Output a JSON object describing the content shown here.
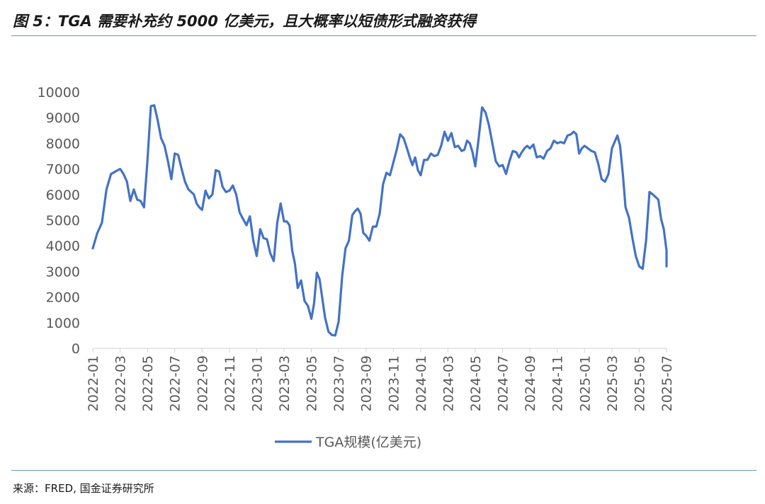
{
  "header": {
    "title": "图 5：TGA 需要补充约 5000 亿美元，且大概率以短债形式融资获得"
  },
  "footer": {
    "source_label": "来源：",
    "source_text": "FRED, 国金证券研究所"
  },
  "colors": {
    "series": "#4472c4",
    "rule": "#6b94b8",
    "axis": "#d9d9d9",
    "tick_text": "#595959"
  },
  "chart_data": {
    "type": "line",
    "title": "",
    "xlabel": "",
    "ylabel": "",
    "ylim": [
      0,
      10000
    ],
    "y_ticks": [
      "0",
      "1000",
      "2000",
      "3000",
      "4000",
      "5000",
      "6000",
      "7000",
      "8000",
      "9000",
      "10000"
    ],
    "x_range": [
      "2022-01",
      "2025-07"
    ],
    "x_ticks": [
      "2022-01",
      "2022-03",
      "2022-05",
      "2022-07",
      "2022-09",
      "2022-11",
      "2023-01",
      "2023-03",
      "2023-05",
      "2023-07",
      "2023-09",
      "2023-11",
      "2024-01",
      "2024-03",
      "2024-05",
      "2024-07",
      "2024-09",
      "2024-11",
      "2025-01",
      "2025-03",
      "2025-05",
      "2025-07"
    ],
    "grid": false,
    "legend_position": "bottom",
    "series": [
      {
        "name": "TGA规模(亿美元)",
        "points": [
          [
            "2022-01",
            3900
          ],
          [
            "2022-01",
            4500
          ],
          [
            "2022-01",
            4900
          ],
          [
            "2022-02",
            6200
          ],
          [
            "2022-02",
            6800
          ],
          [
            "2022-02",
            6900
          ],
          [
            "2022-03",
            7000
          ],
          [
            "2022-03",
            6800
          ],
          [
            "2022-03",
            6500
          ],
          [
            "2022-03",
            5750
          ],
          [
            "2022-04",
            6200
          ],
          [
            "2022-04",
            5800
          ],
          [
            "2022-04",
            5750
          ],
          [
            "2022-04",
            5500
          ],
          [
            "2022-05",
            7300
          ],
          [
            "2022-05",
            9450
          ],
          [
            "2022-05",
            9480
          ],
          [
            "2022-05",
            8900
          ],
          [
            "2022-06",
            8200
          ],
          [
            "2022-06",
            7900
          ],
          [
            "2022-06",
            7300
          ],
          [
            "2022-06",
            6600
          ],
          [
            "2022-07",
            7600
          ],
          [
            "2022-07",
            7550
          ],
          [
            "2022-07",
            7000
          ],
          [
            "2022-07",
            6500
          ],
          [
            "2022-08",
            6200
          ],
          [
            "2022-08",
            6100
          ],
          [
            "2022-08",
            6000
          ],
          [
            "2022-08",
            5650
          ],
          [
            "2022-08",
            5500
          ],
          [
            "2022-09",
            5400
          ],
          [
            "2022-09",
            6150
          ],
          [
            "2022-09",
            5850
          ],
          [
            "2022-09",
            6000
          ],
          [
            "2022-10",
            6950
          ],
          [
            "2022-10",
            6900
          ],
          [
            "2022-10",
            6300
          ],
          [
            "2022-10",
            6100
          ],
          [
            "2022-11",
            6150
          ],
          [
            "2022-11",
            6350
          ],
          [
            "2022-11",
            6000
          ],
          [
            "2022-11",
            5300
          ],
          [
            "2022-12",
            5050
          ],
          [
            "2022-12",
            4800
          ],
          [
            "2022-12",
            5150
          ],
          [
            "2022-12",
            4200
          ],
          [
            "2023-01",
            3600
          ],
          [
            "2023-01",
            4650
          ],
          [
            "2023-01",
            4300
          ],
          [
            "2023-01",
            4250
          ],
          [
            "2023-02",
            3700
          ],
          [
            "2023-02",
            3400
          ],
          [
            "2023-02",
            4900
          ],
          [
            "2023-02",
            5650
          ],
          [
            "2023-03",
            4950
          ],
          [
            "2023-03",
            4950
          ],
          [
            "2023-03",
            4800
          ],
          [
            "2023-03",
            3800
          ],
          [
            "2023-03",
            3300
          ],
          [
            "2023-04",
            2350
          ],
          [
            "2023-04",
            2650
          ],
          [
            "2023-04",
            1850
          ],
          [
            "2023-04",
            1650
          ],
          [
            "2023-05",
            1150
          ],
          [
            "2023-05",
            1750
          ],
          [
            "2023-05",
            2950
          ],
          [
            "2023-05",
            2700
          ],
          [
            "2023-05",
            1950
          ],
          [
            "2023-06",
            1200
          ],
          [
            "2023-06",
            650
          ],
          [
            "2023-06",
            520
          ],
          [
            "2023-06",
            500
          ],
          [
            "2023-07",
            1050
          ],
          [
            "2023-07",
            2800
          ],
          [
            "2023-07",
            3900
          ],
          [
            "2023-07",
            4200
          ],
          [
            "2023-08",
            5200
          ],
          [
            "2023-08",
            5350
          ],
          [
            "2023-08",
            5450
          ],
          [
            "2023-08",
            5250
          ],
          [
            "2023-08",
            4500
          ],
          [
            "2023-09",
            4400
          ],
          [
            "2023-09",
            4200
          ],
          [
            "2023-09",
            4750
          ],
          [
            "2023-09",
            4750
          ],
          [
            "2023-10",
            5250
          ],
          [
            "2023-10",
            6400
          ],
          [
            "2023-10",
            6850
          ],
          [
            "2023-10",
            6750
          ],
          [
            "2023-11",
            7250
          ],
          [
            "2023-11",
            7750
          ],
          [
            "2023-11",
            8350
          ],
          [
            "2023-11",
            8200
          ],
          [
            "2023-12",
            7800
          ],
          [
            "2023-12",
            7450
          ],
          [
            "2023-12",
            7150
          ],
          [
            "2023-12",
            7450
          ],
          [
            "2023-12",
            6950
          ],
          [
            "2024-01",
            6750
          ],
          [
            "2024-01",
            7350
          ],
          [
            "2024-01",
            7350
          ],
          [
            "2024-01",
            7600
          ],
          [
            "2024-02",
            7500
          ],
          [
            "2024-02",
            7550
          ],
          [
            "2024-02",
            7900
          ],
          [
            "2024-02",
            8450
          ],
          [
            "2024-03",
            8100
          ],
          [
            "2024-03",
            8400
          ],
          [
            "2024-03",
            7850
          ],
          [
            "2024-03",
            7900
          ],
          [
            "2024-04",
            7700
          ],
          [
            "2024-04",
            7750
          ],
          [
            "2024-04",
            8100
          ],
          [
            "2024-04",
            8000
          ],
          [
            "2024-04",
            7650
          ],
          [
            "2024-05",
            7100
          ],
          [
            "2024-05",
            8200
          ],
          [
            "2024-05",
            9400
          ],
          [
            "2024-05",
            9200
          ],
          [
            "2024-06",
            8700
          ],
          [
            "2024-06",
            8000
          ],
          [
            "2024-06",
            7300
          ],
          [
            "2024-06",
            7100
          ],
          [
            "2024-07",
            7150
          ],
          [
            "2024-07",
            6800
          ],
          [
            "2024-07",
            7300
          ],
          [
            "2024-07",
            7700
          ],
          [
            "2024-08",
            7650
          ],
          [
            "2024-08",
            7450
          ],
          [
            "2024-08",
            7650
          ],
          [
            "2024-08",
            7800
          ],
          [
            "2024-08",
            7900
          ],
          [
            "2024-09",
            7800
          ],
          [
            "2024-09",
            7950
          ],
          [
            "2024-09",
            7450
          ],
          [
            "2024-09",
            7500
          ],
          [
            "2024-10",
            7400
          ],
          [
            "2024-10",
            7700
          ],
          [
            "2024-10",
            7800
          ],
          [
            "2024-10",
            8100
          ],
          [
            "2024-11",
            8000
          ],
          [
            "2024-11",
            8050
          ],
          [
            "2024-11",
            8000
          ],
          [
            "2024-11",
            8300
          ],
          [
            "2024-12",
            8350
          ],
          [
            "2024-12",
            8450
          ],
          [
            "2024-12",
            8350
          ],
          [
            "2024-12",
            7600
          ],
          [
            "2024-12",
            7800
          ],
          [
            "2025-01",
            7900
          ],
          [
            "2025-01",
            7800
          ],
          [
            "2025-01",
            7700
          ],
          [
            "2025-01",
            7650
          ],
          [
            "2025-02",
            7200
          ],
          [
            "2025-02",
            6600
          ],
          [
            "2025-02",
            6500
          ],
          [
            "2025-02",
            6800
          ],
          [
            "2025-03",
            7800
          ],
          [
            "2025-03",
            8050
          ],
          [
            "2025-03",
            8300
          ],
          [
            "2025-03",
            7900
          ],
          [
            "2025-03",
            6800
          ],
          [
            "2025-04",
            5500
          ],
          [
            "2025-04",
            5100
          ],
          [
            "2025-04",
            4300
          ],
          [
            "2025-04",
            3600
          ],
          [
            "2025-05",
            3200
          ],
          [
            "2025-05",
            3100
          ],
          [
            "2025-05",
            4200
          ],
          [
            "2025-05",
            6100
          ],
          [
            "2025-06",
            6000
          ],
          [
            "2025-06",
            5900
          ],
          [
            "2025-06",
            5800
          ],
          [
            "2025-06",
            5050
          ],
          [
            "2025-06",
            4650
          ],
          [
            "2025-07",
            3800
          ],
          [
            "2025-07",
            3350
          ],
          [
            "2025-07",
            3400
          ],
          [
            "2025-07",
            3650
          ],
          [
            "2025-07",
            3600
          ],
          [
            "2025-07",
            3200
          ]
        ]
      }
    ]
  }
}
